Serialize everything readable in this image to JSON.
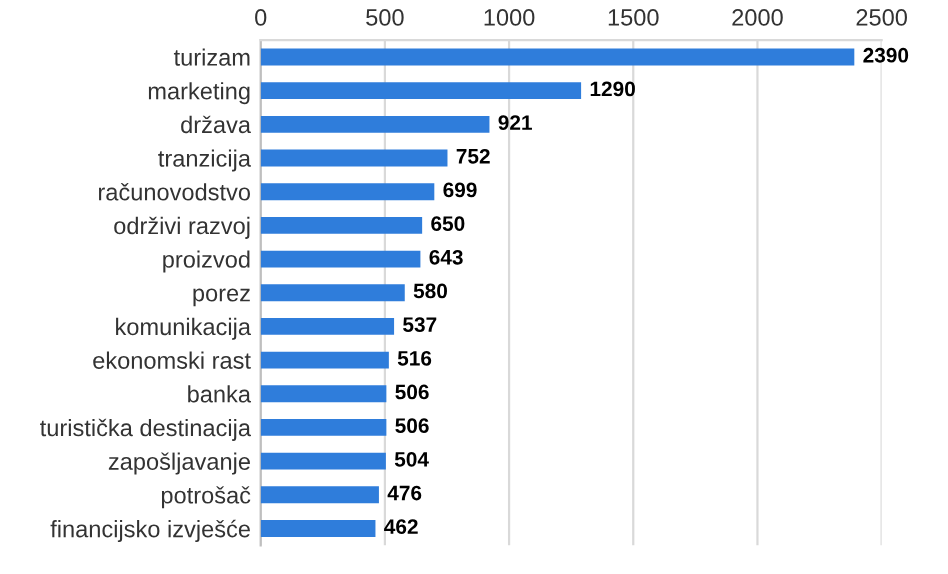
{
  "chart_data": {
    "type": "bar",
    "orientation": "horizontal",
    "categories": [
      "turizam",
      "marketing",
      "država",
      "tranzicija",
      "računovodstvo",
      "održivi razvoj",
      "proizvod",
      "porez",
      "komunikacija",
      "ekonomski rast",
      "banka",
      "turistička destinacija",
      "zapošljavanje",
      "potrošač",
      "financijsko izvješće"
    ],
    "values": [
      2390,
      1290,
      921,
      752,
      699,
      650,
      643,
      580,
      537,
      516,
      506,
      506,
      504,
      476,
      462
    ],
    "color": "#2f7ddb",
    "xlim": [
      0,
      2500
    ],
    "xticks": [
      0,
      500,
      1000,
      1500,
      2000,
      2500
    ],
    "grid": "x",
    "data_labels": true
  }
}
